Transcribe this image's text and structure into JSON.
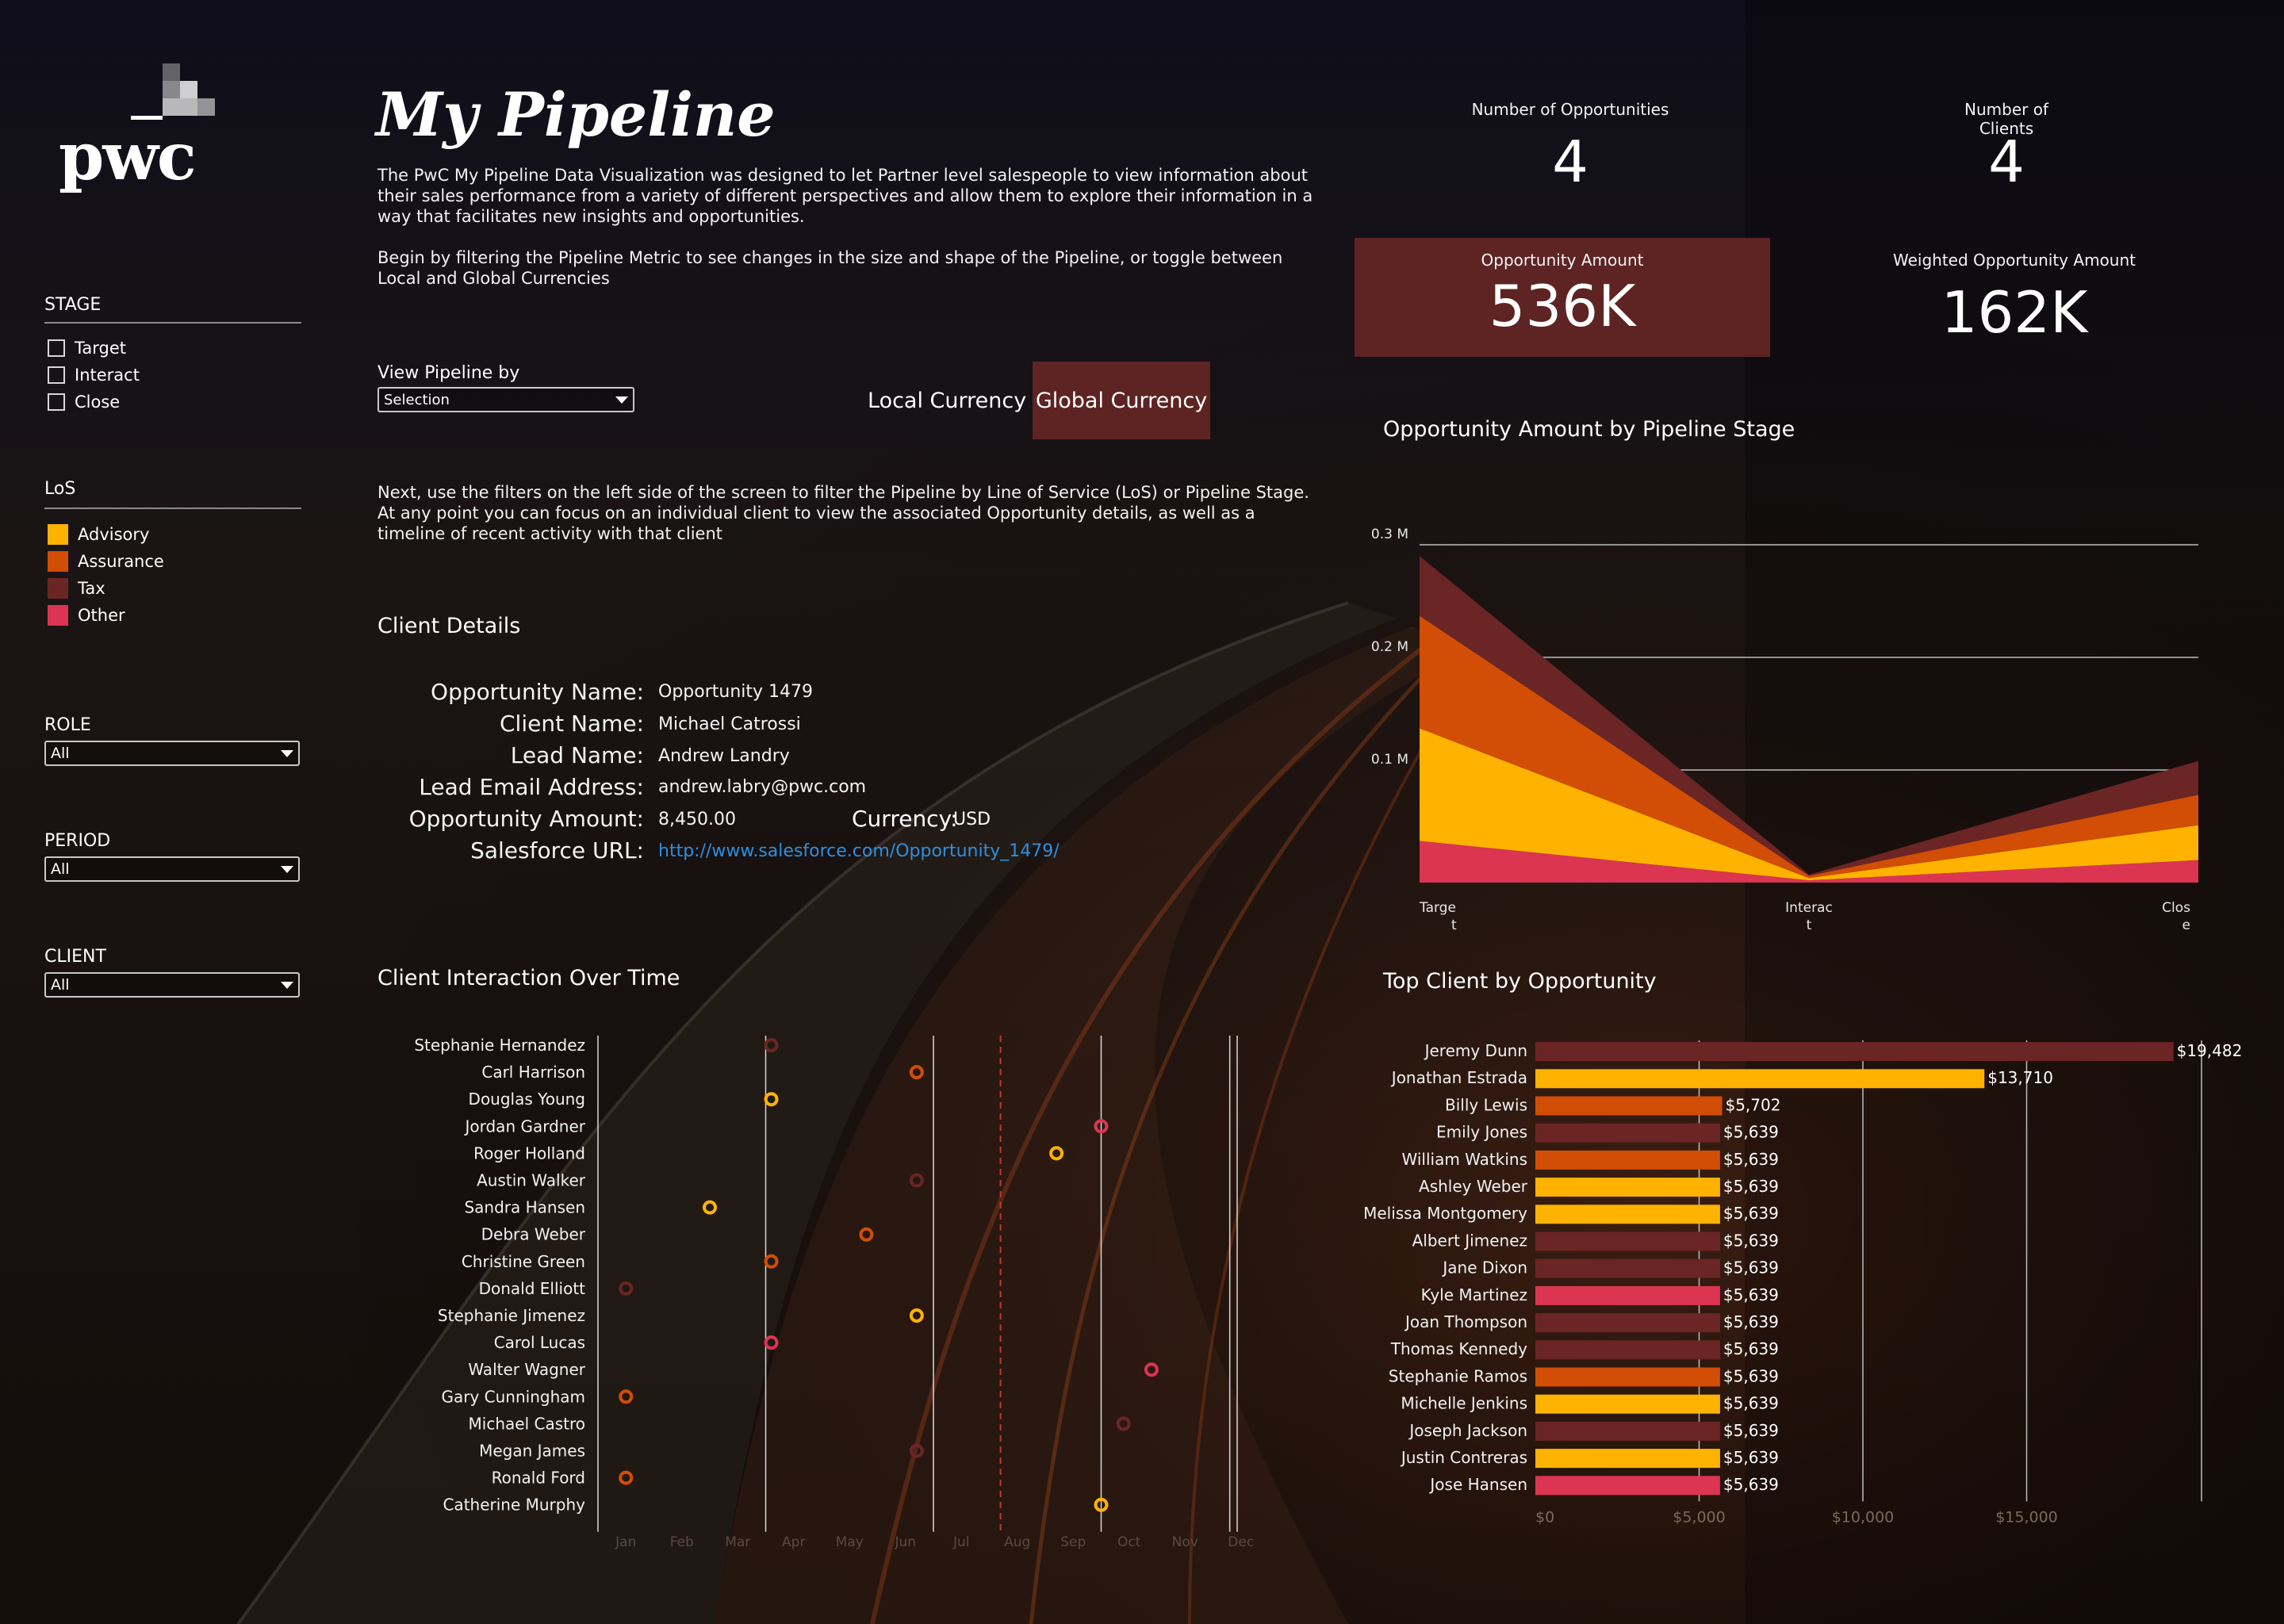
{
  "header": {
    "title": "My Pipeline",
    "intro_1": "The PwC My Pipeline Data Visualization was designed to let Partner level salespeople to view information about their sales performance from a variety of different perspectives and allow them to explore their information in a way that facilitates new insights and opportunities.",
    "intro_2": "Begin by filtering the Pipeline Metric to see changes in the size and shape of the Pipeline, or toggle between Local and Global Currencies",
    "intro_3": "Next, use the filters on the left side of the screen to filter the Pipeline by Line of Service (LoS) or Pipeline Stage. At any point you can focus on an individual client to view the associated Opportunity details, as well as a timeline of recent activity with that client"
  },
  "logo": {
    "text": "pwc"
  },
  "filters": {
    "stage": {
      "title": "STAGE",
      "items": [
        "Target",
        "Interact",
        "Close"
      ]
    },
    "los": {
      "title": "LoS",
      "items": [
        {
          "label": "Advisory",
          "color": "#FFB300"
        },
        {
          "label": "Assurance",
          "color": "#D24D05"
        },
        {
          "label": "Tax",
          "color": "#6B2525"
        },
        {
          "label": "Other",
          "color": "#DB3551"
        }
      ]
    },
    "role": {
      "title": "ROLE",
      "value": "All"
    },
    "period": {
      "title": "PERIOD",
      "value": "All"
    },
    "client": {
      "title": "CLIENT",
      "value": "All"
    }
  },
  "view_pipeline": {
    "label": "View Pipeline by",
    "value": "Selection"
  },
  "currency": {
    "local": "Local Currency",
    "global": "Global Currency",
    "selected": "Global Currency"
  },
  "kpis": {
    "num_opportunities": {
      "label": "Number of Opportunities",
      "value": "4"
    },
    "num_clients": {
      "label_1": "Number of",
      "label_2": "Clients",
      "value": "4"
    },
    "opp_amount": {
      "label": "Opportunity Amount",
      "value": "536K"
    },
    "weighted_amount": {
      "label": "Weighted Opportunity Amount",
      "value": "162K"
    }
  },
  "client_details": {
    "title": "Client Details",
    "fields": [
      {
        "label": "Opportunity Name:",
        "value": "Opportunity 1479"
      },
      {
        "label": "Client Name:",
        "value": "Michael Catrossi"
      },
      {
        "label": "Lead Name:",
        "value": "Andrew Landry"
      },
      {
        "label": "Lead Email Address:",
        "value": "andrew.labry@pwc.com"
      },
      {
        "label": "Opportunity Amount:",
        "value": "8,450.00"
      },
      {
        "label": "Salesforce URL:",
        "value": "http://www.salesforce.com/Opportunity_1479/"
      }
    ],
    "currency_label": "Currency:",
    "currency_value": "USD"
  },
  "chart_data": [
    {
      "type": "area",
      "title": "Opportunity Amount by Pipeline Stage",
      "categories": [
        "Target",
        "Interact",
        "Close"
      ],
      "category_labels": [
        [
          "Targe",
          "t"
        ],
        [
          "Interac",
          "t"
        ],
        [
          "Clos",
          "e"
        ]
      ],
      "y_ticks": [
        "0.3 M",
        "0.2 M",
        "0.1 M"
      ],
      "y_tick_values": [
        0.3,
        0.2,
        0.1
      ],
      "ylim": [
        0,
        0.3
      ],
      "stacked": true,
      "series": [
        {
          "name": "Other",
          "color": "#DB3551",
          "values": [
            0.037,
            0.002,
            0.02
          ]
        },
        {
          "name": "Advisory",
          "color": "#FFB300",
          "values": [
            0.1,
            0.002,
            0.031
          ]
        },
        {
          "name": "Assurance",
          "color": "#D24D05",
          "values": [
            0.1,
            0.002,
            0.027
          ]
        },
        {
          "name": "Tax",
          "color": "#6B2525",
          "values": [
            0.053,
            0.001,
            0.03
          ]
        }
      ]
    },
    {
      "type": "bar",
      "orientation": "horizontal",
      "title": "Top Client by Opportunity",
      "xlim": [
        0,
        20000
      ],
      "x_ticks": [
        "$0",
        "$5,000",
        "$10,000",
        "$15,000"
      ],
      "x_tick_values": [
        0,
        5000,
        10000,
        15000
      ],
      "rows": [
        {
          "name": "Jeremy Dunn",
          "value": 19482,
          "label": "$19,482",
          "color": "#6B2525"
        },
        {
          "name": "Jonathan Estrada",
          "value": 13710,
          "label": "$13,710",
          "color": "#FFB300"
        },
        {
          "name": "Billy Lewis",
          "value": 5702,
          "label": "$5,702",
          "color": "#D24D05"
        },
        {
          "name": "Emily Jones",
          "value": 5639,
          "label": "$5,639",
          "color": "#6B2525"
        },
        {
          "name": "William Watkins",
          "value": 5639,
          "label": "$5,639",
          "color": "#D24D05"
        },
        {
          "name": "Ashley Weber",
          "value": 5639,
          "label": "$5,639",
          "color": "#FFB300"
        },
        {
          "name": "Melissa Montgomery",
          "value": 5639,
          "label": "$5,639",
          "color": "#FFB300"
        },
        {
          "name": "Albert Jimenez",
          "value": 5639,
          "label": "$5,639",
          "color": "#6B2525"
        },
        {
          "name": "Jane Dixon",
          "value": 5639,
          "label": "$5,639",
          "color": "#6B2525"
        },
        {
          "name": "Kyle Martinez",
          "value": 5639,
          "label": "$5,639",
          "color": "#DB3551"
        },
        {
          "name": "Joan Thompson",
          "value": 5639,
          "label": "$5,639",
          "color": "#6B2525"
        },
        {
          "name": "Thomas Kennedy",
          "value": 5639,
          "label": "$5,639",
          "color": "#6B2525"
        },
        {
          "name": "Stephanie Ramos",
          "value": 5639,
          "label": "$5,639",
          "color": "#D24D05"
        },
        {
          "name": "Michelle Jenkins",
          "value": 5639,
          "label": "$5,639",
          "color": "#FFB300"
        },
        {
          "name": "Joseph Jackson",
          "value": 5639,
          "label": "$5,639",
          "color": "#6B2525"
        },
        {
          "name": "Justin Contreras",
          "value": 5639,
          "label": "$5,639",
          "color": "#FFB300"
        },
        {
          "name": "Jose Hansen",
          "value": 5639,
          "label": "$5,639",
          "color": "#DB3551"
        }
      ]
    },
    {
      "type": "scatter",
      "title": "Client Interaction Over Time",
      "months": [
        "Jan",
        "Feb",
        "Mar",
        "Apr",
        "May",
        "Jun",
        "Jul",
        "Aug",
        "Sep",
        "Oct",
        "Nov",
        "Dec"
      ],
      "reference_month": 7.2,
      "rows": [
        {
          "name": "Stephanie Hernandez",
          "month": 3.1,
          "color": "#6B2525"
        },
        {
          "name": "Carl Harrison",
          "month": 5.7,
          "color": "#D24D05"
        },
        {
          "name": "Douglas Young",
          "month": 3.1,
          "color": "#FFB300"
        },
        {
          "name": "Jordan Gardner",
          "month": 9.0,
          "color": "#DB3551"
        },
        {
          "name": "Roger Holland",
          "month": 8.2,
          "color": "#FFB300"
        },
        {
          "name": "Austin Walker",
          "month": 5.7,
          "color": "#6B2525"
        },
        {
          "name": "Sandra Hansen",
          "month": 2.0,
          "color": "#FFB300"
        },
        {
          "name": "Debra Weber",
          "month": 4.8,
          "color": "#D24D05"
        },
        {
          "name": "Christine Green",
          "month": 3.1,
          "color": "#D24D05"
        },
        {
          "name": "Donald Elliott",
          "month": 0.5,
          "color": "#6B2525"
        },
        {
          "name": "Stephanie Jimenez",
          "month": 5.7,
          "color": "#FFB300"
        },
        {
          "name": "Carol Lucas",
          "month": 3.1,
          "color": "#DB3551"
        },
        {
          "name": "Walter Wagner",
          "month": 9.9,
          "color": "#DB3551"
        },
        {
          "name": "Gary Cunningham",
          "month": 0.5,
          "color": "#D24D05"
        },
        {
          "name": "Michael Castro",
          "month": 9.4,
          "color": "#6B2525"
        },
        {
          "name": "Megan James",
          "month": 5.7,
          "color": "#6B2525"
        },
        {
          "name": "Ronald Ford",
          "month": 0.5,
          "color": "#D24D05"
        },
        {
          "name": "Catherine Murphy",
          "month": 9.0,
          "color": "#FFB300"
        }
      ]
    }
  ]
}
